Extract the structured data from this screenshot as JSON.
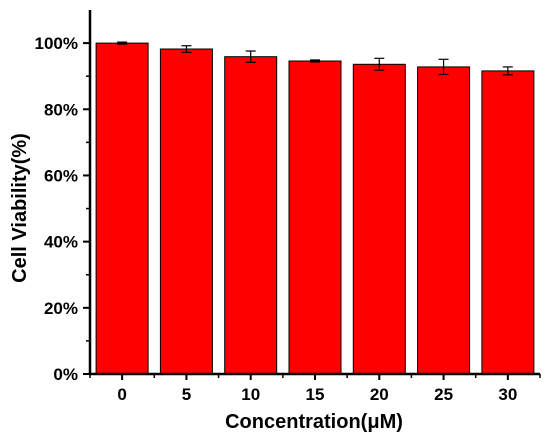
{
  "chart_data": {
    "type": "bar",
    "title": "",
    "xlabel": "Concentration(μM)",
    "ylabel": "Cell Viability(%)",
    "categories": [
      "0",
      "5",
      "10",
      "15",
      "20",
      "25",
      "30"
    ],
    "values": [
      100,
      98.2,
      95.9,
      94.6,
      93.6,
      92.8,
      91.6
    ],
    "errors": [
      0.3,
      1.0,
      1.7,
      0.3,
      1.8,
      2.3,
      1.2
    ],
    "ylim": [
      0,
      110
    ],
    "yticks": [
      0,
      20,
      40,
      60,
      80,
      100
    ],
    "ytick_labels": [
      "0%",
      "20%",
      "40%",
      "60%",
      "80%",
      "100%"
    ],
    "grid": false,
    "legend": "none",
    "colors": {
      "bar": "#ff0000",
      "bar_edge": "#000000",
      "axis": "#000000"
    }
  }
}
